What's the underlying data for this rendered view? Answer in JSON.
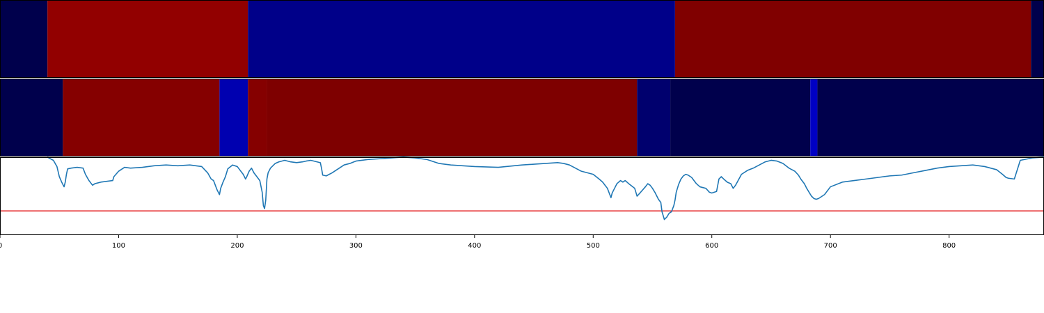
{
  "chart_data": [
    {
      "type": "heatmap",
      "xlim": [
        0,
        880
      ],
      "colors": {
        "dark_navy": "#00004c",
        "dark_red": "#920000",
        "blue": "#000089",
        "maroon": "#800000"
      },
      "segments": [
        {
          "start": 0,
          "end": 40,
          "color": "#00004c"
        },
        {
          "start": 40,
          "end": 209,
          "color": "#920000"
        },
        {
          "start": 209,
          "end": 569,
          "color": "#000089"
        },
        {
          "start": 569,
          "end": 869,
          "color": "#800000"
        },
        {
          "start": 869,
          "end": 880,
          "color": "#00004c"
        }
      ]
    },
    {
      "type": "heatmap",
      "xlim": [
        0,
        880
      ],
      "colors": {
        "dark_navy": "#00004c",
        "red": "#850000",
        "bright_blue": "#0000b0",
        "maroon": "#7e0000",
        "navy": "#00006e",
        "blue": "#0000c4"
      },
      "segments": [
        {
          "start": 0,
          "end": 53,
          "color": "#00004c"
        },
        {
          "start": 53,
          "end": 185,
          "color": "#850000"
        },
        {
          "start": 185,
          "end": 209,
          "color": "#0000b0"
        },
        {
          "start": 209,
          "end": 225,
          "color": "#850000"
        },
        {
          "start": 225,
          "end": 537,
          "color": "#7e0000"
        },
        {
          "start": 537,
          "end": 565,
          "color": "#00006e"
        },
        {
          "start": 565,
          "end": 683,
          "color": "#00004c"
        },
        {
          "start": 683,
          "end": 689,
          "color": "#0000c4"
        },
        {
          "start": 689,
          "end": 880,
          "color": "#00004c"
        }
      ]
    },
    {
      "type": "line",
      "xlim": [
        0,
        880
      ],
      "ylim": [
        0,
        1
      ],
      "x_ticks": [
        0,
        100,
        200,
        300,
        400,
        500,
        600,
        700,
        800
      ],
      "x_tick_labels": [
        "0",
        "100",
        "200",
        "300",
        "400",
        "500",
        "600",
        "700",
        "800"
      ],
      "threshold": {
        "y": 0.31,
        "color": "#e31a1c"
      },
      "series": [
        {
          "color": "#1f77b4",
          "x": [
            40,
            45,
            48,
            50,
            52,
            54,
            55,
            56,
            57,
            60,
            65,
            70,
            72,
            75,
            78,
            80,
            85,
            95,
            96,
            100,
            105,
            110,
            120,
            130,
            140,
            150,
            160,
            170,
            175,
            178,
            180,
            183,
            185,
            186,
            188,
            190,
            192,
            196,
            200,
            205,
            207,
            208,
            210,
            212,
            214,
            216,
            219,
            221,
            222,
            223,
            224,
            225,
            226,
            228,
            232,
            235,
            240,
            245,
            250,
            255,
            258,
            262,
            270,
            271,
            272,
            275,
            280,
            285,
            290,
            295,
            300,
            305,
            310,
            320,
            330,
            340,
            350,
            360,
            370,
            380,
            400,
            420,
            440,
            450,
            460,
            470,
            475,
            480,
            485,
            490,
            500,
            505,
            508,
            512,
            515,
            516,
            518,
            520,
            523,
            525,
            527,
            530,
            535,
            537,
            540,
            544,
            546,
            548,
            550,
            552,
            555,
            557,
            558,
            560,
            562,
            564,
            566,
            568,
            569,
            570,
            572,
            574,
            576,
            578,
            580,
            583,
            585,
            587,
            590,
            595,
            598,
            600,
            604,
            606,
            608,
            610,
            613,
            616,
            618,
            620,
            625,
            630,
            635,
            640,
            645,
            650,
            655,
            660,
            665,
            670,
            673,
            675,
            678,
            680,
            682,
            684,
            686,
            688,
            690,
            695,
            700,
            710,
            720,
            730,
            740,
            750,
            760,
            770,
            780,
            790,
            800,
            810,
            820,
            830,
            840,
            845,
            848,
            850,
            855,
            860,
            870,
            880
          ],
          "y": [
            1.0,
            0.96,
            0.88,
            0.75,
            0.68,
            0.62,
            0.68,
            0.78,
            0.85,
            0.86,
            0.87,
            0.86,
            0.78,
            0.7,
            0.64,
            0.66,
            0.68,
            0.7,
            0.75,
            0.82,
            0.87,
            0.86,
            0.87,
            0.89,
            0.9,
            0.89,
            0.9,
            0.88,
            0.8,
            0.72,
            0.7,
            0.58,
            0.52,
            0.6,
            0.68,
            0.75,
            0.85,
            0.9,
            0.88,
            0.78,
            0.72,
            0.75,
            0.82,
            0.86,
            0.8,
            0.76,
            0.7,
            0.55,
            0.38,
            0.34,
            0.45,
            0.72,
            0.8,
            0.86,
            0.92,
            0.94,
            0.96,
            0.94,
            0.93,
            0.94,
            0.95,
            0.96,
            0.93,
            0.86,
            0.77,
            0.76,
            0.8,
            0.85,
            0.9,
            0.92,
            0.95,
            0.96,
            0.97,
            0.98,
            0.99,
            1.0,
            0.99,
            0.97,
            0.92,
            0.9,
            0.88,
            0.87,
            0.9,
            0.91,
            0.92,
            0.93,
            0.92,
            0.9,
            0.86,
            0.82,
            0.78,
            0.72,
            0.68,
            0.6,
            0.48,
            0.54,
            0.6,
            0.66,
            0.7,
            0.68,
            0.7,
            0.66,
            0.6,
            0.5,
            0.55,
            0.62,
            0.66,
            0.64,
            0.6,
            0.55,
            0.46,
            0.42,
            0.3,
            0.2,
            0.23,
            0.28,
            0.3,
            0.38,
            0.45,
            0.55,
            0.65,
            0.72,
            0.76,
            0.78,
            0.77,
            0.74,
            0.7,
            0.66,
            0.62,
            0.6,
            0.55,
            0.54,
            0.56,
            0.72,
            0.75,
            0.72,
            0.68,
            0.66,
            0.6,
            0.64,
            0.78,
            0.83,
            0.86,
            0.9,
            0.94,
            0.96,
            0.95,
            0.92,
            0.86,
            0.82,
            0.77,
            0.72,
            0.66,
            0.6,
            0.55,
            0.5,
            0.47,
            0.46,
            0.47,
            0.52,
            0.62,
            0.68,
            0.7,
            0.72,
            0.74,
            0.76,
            0.77,
            0.8,
            0.83,
            0.86,
            0.88,
            0.89,
            0.9,
            0.88,
            0.84,
            0.78,
            0.74,
            0.73,
            0.72,
            0.96,
            0.99,
            1.0
          ]
        }
      ]
    }
  ]
}
